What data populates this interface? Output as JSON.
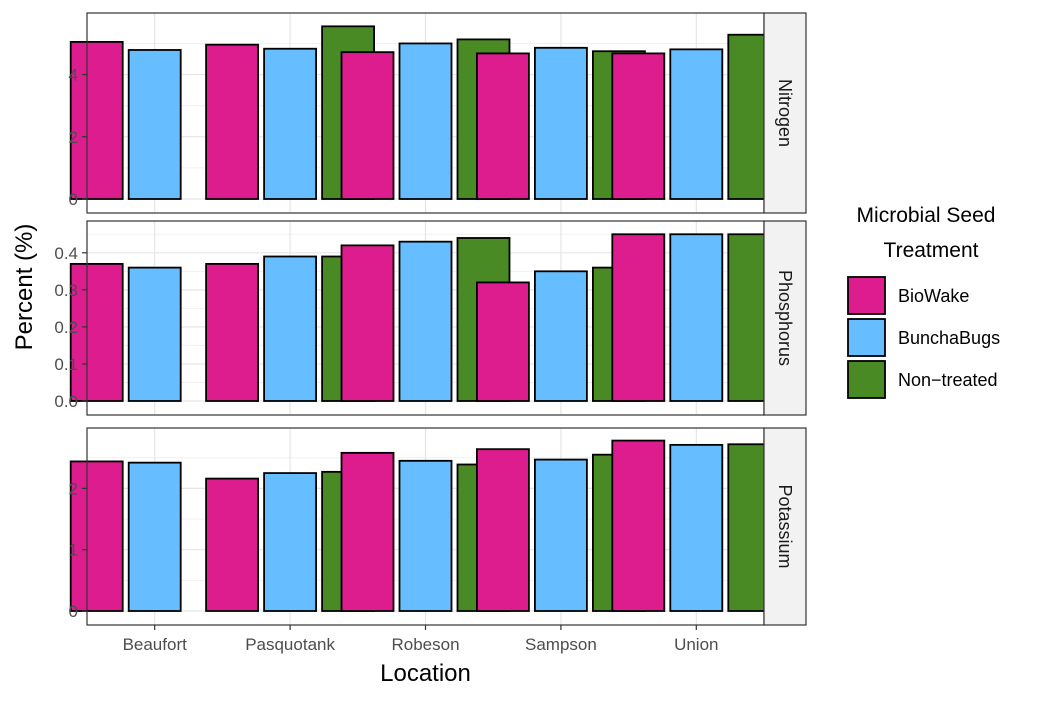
{
  "chart_data": {
    "type": "bar",
    "xlabel": "Location",
    "ylabel": "Percent (%)",
    "categories": [
      "Beaufort",
      "Pasquotank",
      "Robeson",
      "Sampson",
      "Union"
    ],
    "legend": {
      "title_lines": [
        "Microbial Seed",
        "Treatment"
      ],
      "position": "right"
    },
    "series": [
      {
        "name": "BioWake",
        "color": "#DD1C8D"
      },
      {
        "name": "BunchaBugs",
        "color": "#66BDFF"
      },
      {
        "name": "Non−treated",
        "color": "#4A8A24"
      }
    ],
    "grid": true,
    "facets": [
      {
        "label": "Nitrogen",
        "ylim": [
          0,
          5.85
        ],
        "yticks": [
          0,
          2,
          4
        ],
        "ytick_labels": [
          "0",
          "2",
          "4"
        ],
        "values": [
          [
            5.05,
            4.79,
            null
          ],
          [
            4.96,
            4.83,
            5.55
          ],
          [
            4.72,
            5.0,
            5.13
          ],
          [
            4.68,
            4.86,
            4.75
          ],
          [
            4.68,
            4.81,
            5.28
          ]
        ]
      },
      {
        "label": "Phosphorus",
        "ylim": [
          0,
          0.475
        ],
        "yticks": [
          0,
          0.1,
          0.2,
          0.3,
          0.4
        ],
        "ytick_labels": [
          "0.0",
          "0.1",
          "0.2",
          "0.3",
          "0.4"
        ],
        "values": [
          [
            0.37,
            0.36,
            null
          ],
          [
            0.37,
            0.39,
            0.39
          ],
          [
            0.42,
            0.43,
            0.44
          ],
          [
            0.32,
            0.35,
            0.36
          ],
          [
            0.45,
            0.45,
            0.45
          ]
        ]
      },
      {
        "label": "Potassium",
        "ylim": [
          0,
          2.92
        ],
        "yticks": [
          0,
          1,
          2
        ],
        "ytick_labels": [
          "0",
          "1",
          "2"
        ],
        "values": [
          [
            2.44,
            2.42,
            null
          ],
          [
            2.16,
            2.25,
            2.27
          ],
          [
            2.58,
            2.45,
            2.39
          ],
          [
            2.64,
            2.47,
            2.55
          ],
          [
            2.78,
            2.71,
            2.72
          ]
        ]
      }
    ]
  }
}
